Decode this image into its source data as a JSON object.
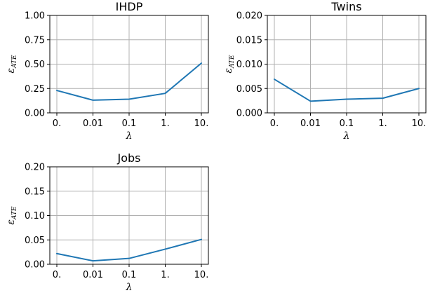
{
  "chart_data": [
    {
      "type": "line",
      "title": "IHDP",
      "xlabel": "λ",
      "ylabel": "ε",
      "ylabel_sub": "ATE",
      "categories": [
        "0.",
        "0.01",
        "0.1",
        "1.",
        "10."
      ],
      "series": [
        {
          "values": [
            0.23,
            0.13,
            0.14,
            0.2,
            0.51
          ]
        }
      ],
      "ylim": [
        0,
        1.0
      ],
      "yticks": [
        "0.00",
        "0.25",
        "0.50",
        "0.75",
        "1.00"
      ],
      "ytick_values": [
        0,
        0.25,
        0.5,
        0.75,
        1.0
      ],
      "grid": true,
      "color": "#1f77b4"
    },
    {
      "type": "line",
      "title": "Twins",
      "xlabel": "λ",
      "ylabel": "ε",
      "ylabel_sub": "ATE",
      "categories": [
        "0.",
        "0.01",
        "0.1",
        "1.",
        "10."
      ],
      "series": [
        {
          "values": [
            0.0069,
            0.0024,
            0.0028,
            0.003,
            0.005
          ]
        }
      ],
      "ylim": [
        0,
        0.02
      ],
      "yticks": [
        "0.000",
        "0.005",
        "0.010",
        "0.015",
        "0.020"
      ],
      "ytick_values": [
        0,
        0.005,
        0.01,
        0.015,
        0.02
      ],
      "grid": true,
      "color": "#1f77b4"
    },
    {
      "type": "line",
      "title": "Jobs",
      "xlabel": "λ",
      "ylabel": "ε",
      "ylabel_sub": "ATE",
      "categories": [
        "0.",
        "0.01",
        "0.1",
        "1.",
        "10."
      ],
      "series": [
        {
          "values": [
            0.022,
            0.007,
            0.012,
            0.031,
            0.051
          ]
        }
      ],
      "ylim": [
        0,
        0.2
      ],
      "yticks": [
        "0.00",
        "0.05",
        "0.10",
        "0.15",
        "0.20"
      ],
      "ytick_values": [
        0,
        0.05,
        0.1,
        0.15,
        0.2
      ],
      "grid": true,
      "color": "#1f77b4"
    }
  ]
}
